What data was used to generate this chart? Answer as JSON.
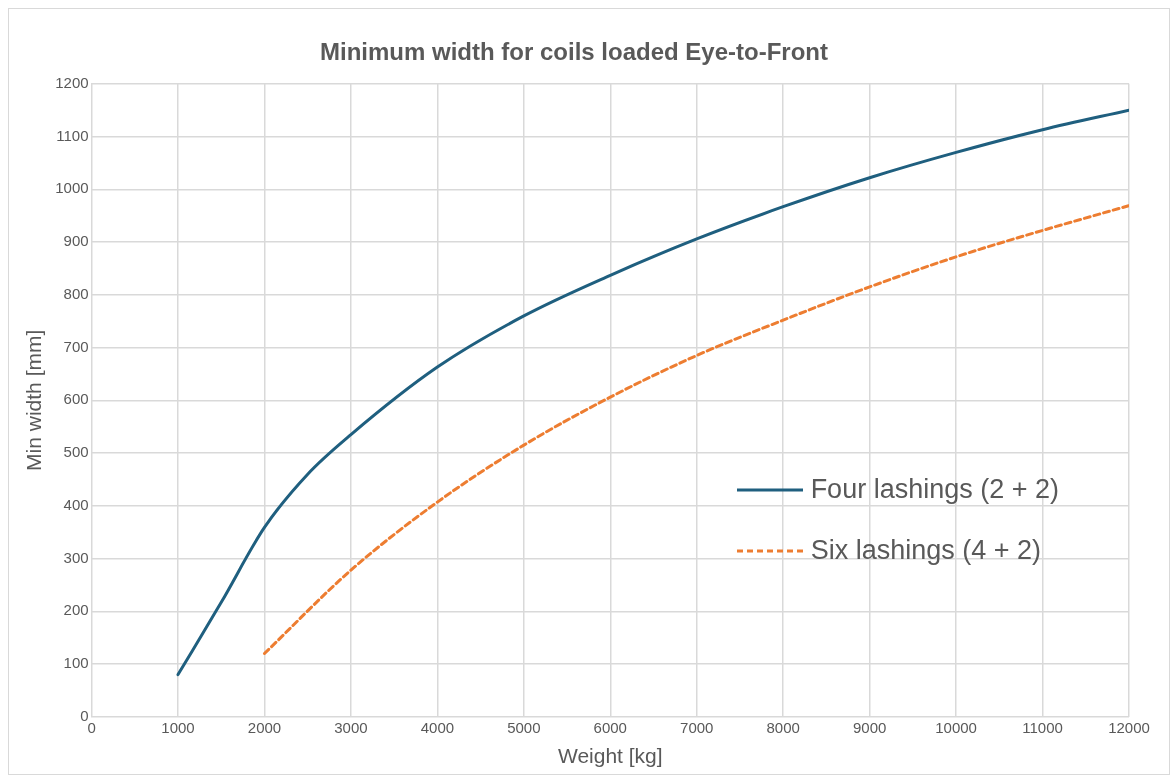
{
  "chart_data": {
    "type": "line",
    "title": "Minimum width for coils loaded Eye-to-Front",
    "xlabel": "Weight [kg]",
    "ylabel": "Min width [mm]",
    "xlim": [
      0,
      12000
    ],
    "xticks": [
      0,
      1000,
      2000,
      3000,
      4000,
      5000,
      6000,
      7000,
      8000,
      9000,
      10000,
      11000,
      12000
    ],
    "ylim": [
      0,
      1200
    ],
    "yticks": [
      0,
      100,
      200,
      300,
      400,
      500,
      600,
      700,
      800,
      900,
      1000,
      1100,
      1200
    ],
    "grid": true,
    "legend": "right",
    "marker": "none",
    "series": [
      {
        "name": "Four lashings (2 + 2)",
        "color": "#1f5f7f",
        "line_style": "solid",
        "x": [
          1000,
          1500,
          2000,
          2500,
          3000,
          4000,
          5000,
          6000,
          7000,
          8000,
          9000,
          10000,
          11000,
          12000
        ],
        "values": [
          80,
          217,
          359,
          460,
          535,
          663,
          760,
          837,
          906,
          967,
          1022,
          1070,
          1113,
          1150
        ]
      },
      {
        "name": "Six lashings (4 + 2)",
        "color": "#ed7d31",
        "line_style": "dashed",
        "x": [
          2000,
          3000,
          4000,
          5000,
          6000,
          7000,
          8000,
          9000,
          10000,
          11000,
          12000
        ],
        "values": [
          120,
          278,
          407,
          515,
          606,
          685,
          752,
          815,
          872,
          922,
          969
        ]
      }
    ]
  }
}
